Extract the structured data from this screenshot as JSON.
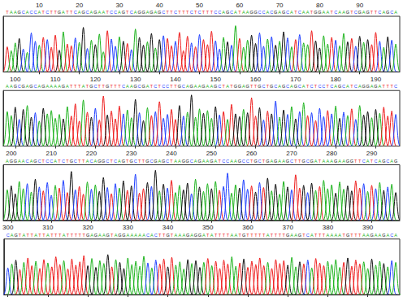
{
  "chart_data": {
    "type": "chromatogram",
    "tick_labels": "x",
    "series": [
      {
        "name": "A",
        "color": "#1db31d"
      },
      {
        "name": "C",
        "color": "#1f3fff"
      },
      {
        "name": "G",
        "color": "#111111"
      },
      {
        "name": "T",
        "color": "#ee1c1c"
      }
    ],
    "panels": [
      {
        "xlim": [
          1,
          100
        ],
        "xticks": [
          10,
          20,
          30,
          40,
          50,
          60,
          70,
          80,
          90
        ],
        "ylim": [
          0,
          100
        ],
        "yticks": [],
        "first_position": 2,
        "sequence": "TAAGCACCATCTTGATTCAGCAGAATCCAGTCAGGAGAGCTTCTTTCTCTTTCCAGCATAAGGCCACGAGCATCAATGGAATCAAGTCGAGTTCAGCA",
        "values": [
          45,
          38,
          52,
          60,
          41,
          35,
          70,
          55,
          48,
          62,
          58,
          44,
          66,
          39,
          72,
          50,
          47,
          61,
          53,
          80,
          42,
          57,
          49,
          68,
          36,
          74,
          59,
          46,
          63,
          55,
          51,
          40,
          77,
          62,
          48,
          54,
          69,
          43,
          58,
          65,
          60,
          47,
          55,
          71,
          38,
          64,
          52,
          45,
          67,
          58,
          49,
          73,
          56,
          41,
          62,
          54,
          48,
          83,
          60,
          44,
          57,
          66,
          51,
          70,
          46,
          59,
          63,
          48,
          55,
          72,
          61,
          45,
          58,
          67,
          52,
          49,
          74,
          56,
          43,
          65,
          50,
          62,
          57,
          47,
          69,
          54,
          60,
          46,
          64,
          53,
          58,
          49,
          71,
          55,
          44,
          63,
          57,
          50
        ]
      },
      {
        "xlim": [
          97,
          196
        ],
        "xticks": [
          100,
          110,
          120,
          130,
          140,
          150,
          160,
          170,
          180,
          190
        ],
        "ylim": [
          0,
          100
        ],
        "yticks": [],
        "first_position": 98,
        "sequence": "AAGCGAGCAGAAAAGATTTATGCTTGTTTCAAGCGATCTCCTTGCAGAAGAAGCTATGGAGTTGCTGCAGCAGCATCTCCTCAGCATCAGGAGATTTC",
        "values": [
          62,
          55,
          70,
          48,
          66,
          73,
          52,
          60,
          45,
          68,
          58,
          64,
          50,
          57,
          49,
          71,
          54,
          76,
          45,
          83,
          61,
          52,
          68,
          47,
          90,
          56,
          63,
          49,
          72,
          58,
          65,
          51,
          84,
          60,
          46,
          69,
          55,
          62,
          80,
          50,
          57,
          66,
          48,
          73,
          54,
          61,
          92,
          52,
          67,
          59,
          64,
          50,
          71,
          56,
          62,
          48,
          75,
          58,
          53,
          66,
          60,
          87,
          54,
          69,
          47,
          63,
          58,
          81,
          52,
          65,
          57,
          71,
          49,
          62,
          78,
          55,
          60,
          46,
          68,
          53,
          64,
          58,
          72,
          50,
          61,
          55,
          67,
          48,
          73,
          56,
          62,
          51,
          66,
          59,
          70,
          54,
          63,
          57
        ]
      },
      {
        "xlim": [
          198,
          297
        ],
        "xticks": [
          200,
          210,
          220,
          230,
          240,
          250,
          260,
          270,
          280,
          290
        ],
        "ylim": [
          0,
          100
        ],
        "yticks": [],
        "first_position": 199,
        "sequence": "AGGAACAGCTCCATCTGCTTACAGGCTCAGTGCTTGCGAGCTAAGGCAGAAGATCCAAGCCTGCTGAGAAGCTTGCGATAAAGAAGGTTCATCAGCAG",
        "values": [
          55,
          62,
          48,
          70,
          57,
          66,
          51,
          74,
          60,
          53,
          68,
          45,
          63,
          58,
          72,
          50,
          88,
          55,
          61,
          47,
          69,
          56,
          64,
          52,
          77,
          59,
          48,
          66,
          58,
          71,
          54,
          62,
          83,
          49,
          57,
          68,
          61,
          90,
          53,
          65,
          58,
          72,
          50,
          63,
          55,
          67,
          48,
          74,
          60,
          52,
          66,
          57,
          70,
          54,
          61,
          85,
          49,
          64,
          58,
          73,
          56,
          62,
          51,
          68,
          59,
          76,
          53,
          65,
          47,
          70,
          60,
          55,
          82,
          58,
          63,
          50,
          67,
          54,
          61,
          72,
          57,
          64,
          49,
          69,
          56,
          62,
          53,
          71,
          58,
          66,
          52,
          63,
          57,
          68,
          54,
          60,
          65,
          50
        ]
      },
      {
        "xlim": [
          299,
          398
        ],
        "xticks": [
          300,
          310,
          320,
          330,
          340,
          350,
          360,
          370,
          380,
          390
        ],
        "ylim": [
          0,
          100
        ],
        "yticks": [],
        "first_position": 300,
        "sequence": "CAGTATTATTATTTATTTTTGAGAAGTAGGAAAAACACTTGTAAAGAGGATATTTTAATGTTTTTATTTTGAAGTCATTTAAAATGTTTAAGAAGACA",
        "values": [
          48,
          55,
          62,
          45,
          58,
          66,
          52,
          60,
          47,
          63,
          57,
          50,
          68,
          54,
          61,
          46,
          64,
          53,
          59,
          70,
          52,
          65,
          49,
          61,
          56,
          72,
          50,
          63,
          58,
          47,
          66,
          54,
          60,
          51,
          69,
          57,
          48,
          62,
          55,
          64,
          50,
          67,
          53,
          59,
          46,
          63,
          56,
          61,
          49,
          58,
          65,
          52,
          60,
          47,
          62,
          55,
          68,
          51,
          57,
          64,
          49,
          60,
          54,
          66,
          52,
          58,
          47,
          63,
          56,
          61,
          53,
          67,
          50,
          59,
          55,
          62,
          48,
          65,
          57,
          52,
          60,
          54,
          63,
          49,
          58,
          66,
          51,
          62,
          55,
          59,
          47,
          64,
          53,
          60,
          56,
          50,
          61,
          58
        ]
      }
    ]
  }
}
